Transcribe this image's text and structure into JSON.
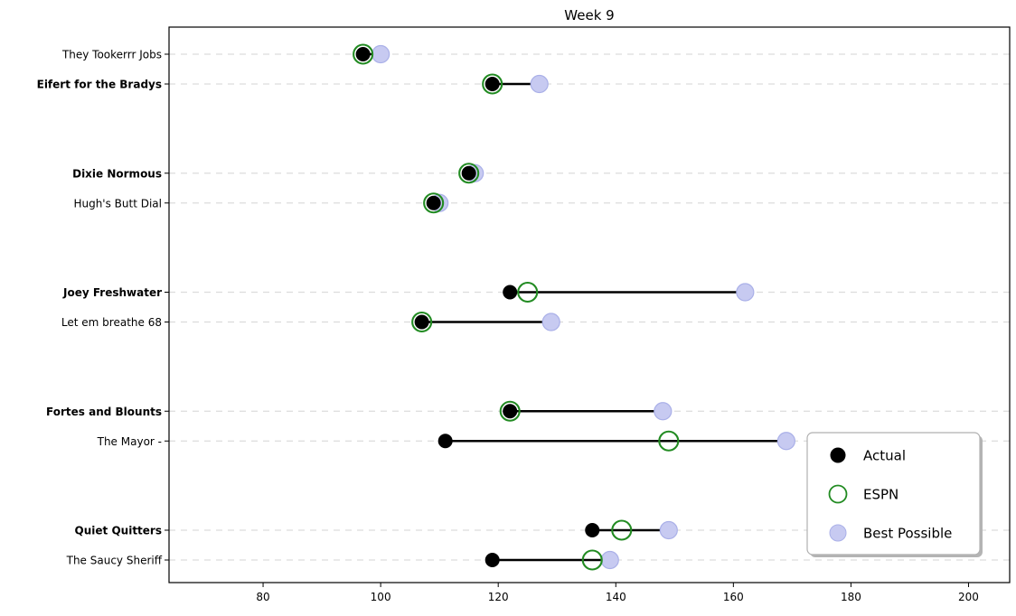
{
  "colors": {
    "background": "#ffffff",
    "actual": "#000000",
    "espn": "#228b22",
    "best_possible_fill": "#c7caf1",
    "best_possible_edge": "#aab0e8",
    "gridline": "#dcdcdc",
    "axis": "#000000",
    "connector_line": "#000000",
    "legend_border": "#b0b0b0",
    "legend_shadow": "#b4b4b4",
    "legend_background": "#ffffff"
  },
  "legend": {
    "position": "lower right",
    "entries": [
      {
        "label": "Actual",
        "marker": "filled-circle",
        "color": "#000000"
      },
      {
        "label": "ESPN",
        "marker": "open-circle",
        "color": "#228b22"
      },
      {
        "label": "Best Possible",
        "marker": "filled-circle",
        "color": "#c7caf1"
      }
    ]
  },
  "chart_data": {
    "type": "scatter",
    "variant": "dumbbell",
    "title": "Week 9",
    "xlabel": "",
    "ylabel": "",
    "xlim": [
      64,
      207
    ],
    "xticks": [
      80,
      100,
      120,
      140,
      160,
      180,
      200
    ],
    "grid": "horizontal-dashed",
    "legend_position": "lower right",
    "series": [
      {
        "name": "Actual",
        "marker": "filled-circle",
        "color": "#000000"
      },
      {
        "name": "ESPN",
        "marker": "open-circle",
        "color": "#228b22"
      },
      {
        "name": "Best Possible",
        "marker": "filled-circle",
        "color": "#c7caf1"
      }
    ],
    "matchups": [
      {
        "teams": [
          {
            "name": "They Tookerrr Jobs",
            "bold": false,
            "actual": 97,
            "espn": 97,
            "best_possible": 100
          },
          {
            "name": "Eifert  for the Bradys",
            "bold": true,
            "actual": 119,
            "espn": 119,
            "best_possible": 127
          }
        ]
      },
      {
        "teams": [
          {
            "name": "Dixie Normous",
            "bold": true,
            "actual": 115,
            "espn": 115,
            "best_possible": 116
          },
          {
            "name": "Hugh's  Butt Dial",
            "bold": false,
            "actual": 109,
            "espn": 109,
            "best_possible": 110
          }
        ]
      },
      {
        "teams": [
          {
            "name": "Joey Freshwater",
            "bold": true,
            "actual": 122,
            "espn": 125,
            "best_possible": 162
          },
          {
            "name": "Let em breathe 68",
            "bold": false,
            "actual": 107,
            "espn": 107,
            "best_possible": 129
          }
        ]
      },
      {
        "teams": [
          {
            "name": "Fortes and Blounts",
            "bold": true,
            "actual": 122,
            "espn": 122,
            "best_possible": 148
          },
          {
            "name": "The Mayor -",
            "bold": false,
            "actual": 111,
            "espn": 149,
            "best_possible": 169
          }
        ]
      },
      {
        "teams": [
          {
            "name": "Quiet Quitters",
            "bold": true,
            "actual": 136,
            "espn": 141,
            "best_possible": 149
          },
          {
            "name": "The Saucy Sheriff",
            "bold": false,
            "actual": 119,
            "espn": 136,
            "best_possible": 139
          }
        ]
      }
    ]
  }
}
